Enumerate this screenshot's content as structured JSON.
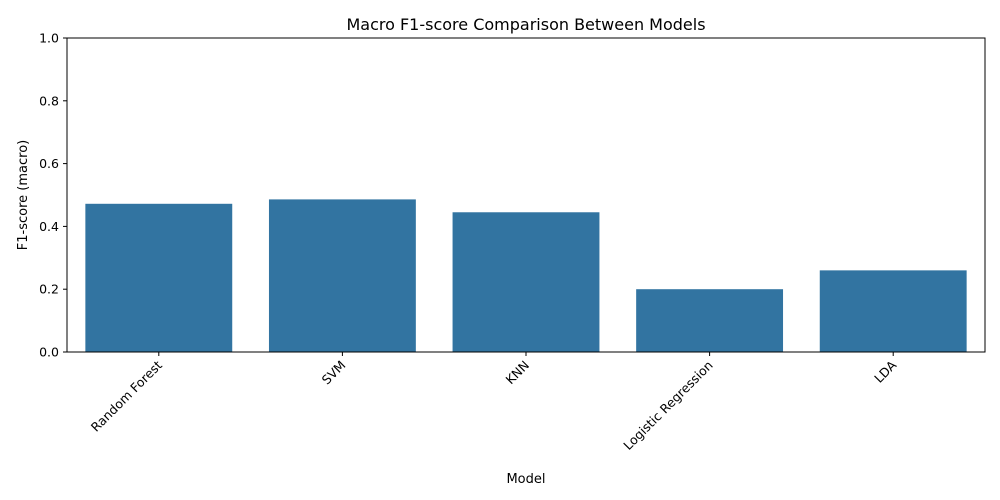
{
  "chart_data": {
    "type": "bar",
    "title": "Macro F1-score Comparison Between Models",
    "xlabel": "Model",
    "ylabel": "F1-score (macro)",
    "categories": [
      "Random Forest",
      "SVM",
      "KNN",
      "Logistic Regression",
      "LDA"
    ],
    "values": [
      0.472,
      0.486,
      0.445,
      0.2,
      0.26
    ],
    "ylim": [
      0,
      1
    ],
    "yticks": [
      0.0,
      0.2,
      0.4,
      0.6,
      0.8,
      1.0
    ],
    "ytick_labels": [
      "0.0",
      "0.2",
      "0.4",
      "0.6",
      "0.8",
      "1.0"
    ],
    "xtick_rotation_deg": 45,
    "bar_color": "#3274a1",
    "grid": false,
    "legend": "none"
  }
}
